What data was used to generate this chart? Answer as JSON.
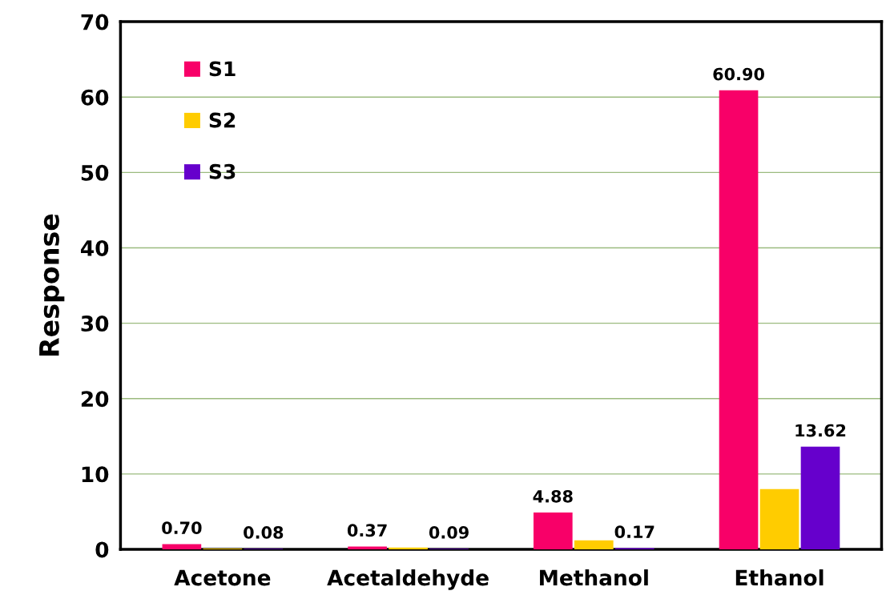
{
  "chart_data": {
    "type": "bar",
    "ylabel": "Response",
    "categories": [
      "Acetone",
      "Acetaldehyde",
      "Methanol",
      "Ethanol"
    ],
    "series": [
      {
        "name": "S1",
        "color": "#f80068",
        "values": [
          0.7,
          0.37,
          4.88,
          60.9
        ],
        "value_labels": [
          "0.70",
          "0.37",
          "4.88",
          "60.90"
        ]
      },
      {
        "name": "S2",
        "color": "#ffcc00",
        "values": [
          0.1,
          0.25,
          1.2,
          8.0
        ]
      },
      {
        "name": "S3",
        "color": "#6600cc",
        "values": [
          0.08,
          0.09,
          0.17,
          13.62
        ],
        "value_labels": [
          "0.08",
          "0.09",
          "0.17",
          "13.62"
        ]
      }
    ],
    "ylim": [
      0,
      70
    ],
    "yticks": [
      0,
      10,
      20,
      30,
      40,
      50,
      60,
      70
    ],
    "grid": "y",
    "legend": "top left"
  }
}
